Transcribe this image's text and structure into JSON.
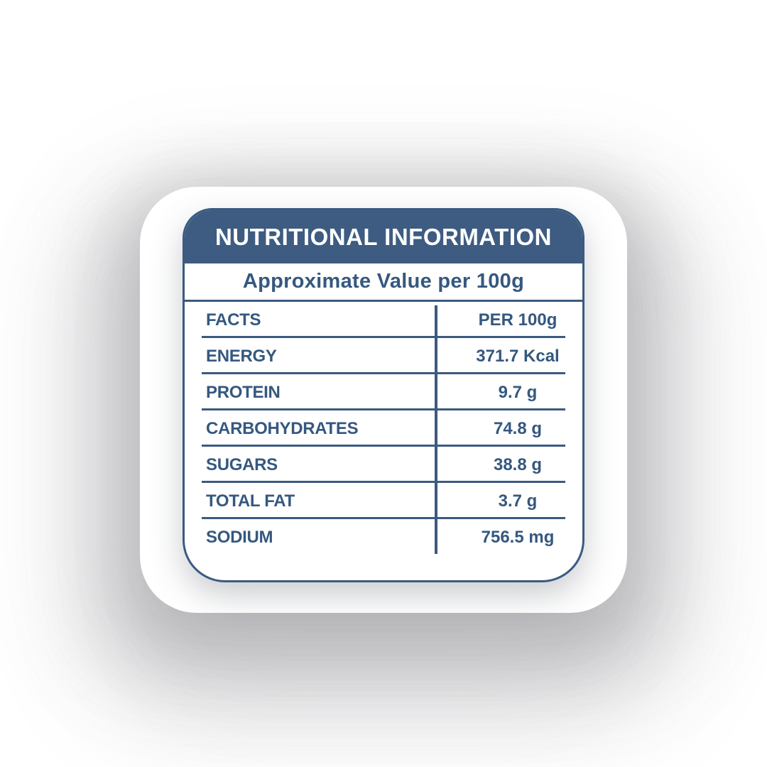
{
  "nutrition_label": {
    "title": "NUTRITIONAL INFORMATION",
    "subtitle": "Approximate Value per 100g",
    "table": {
      "rows": [
        {
          "label": "FACTS",
          "value": "PER 100g",
          "is_header": true
        },
        {
          "label": "ENERGY",
          "value": "371.7 Kcal"
        },
        {
          "label": "PROTEIN",
          "value": "9.7 g"
        },
        {
          "label": "CARBOHYDRATES",
          "value": "74.8 g"
        },
        {
          "label": "SUGARS",
          "value": "38.8 g"
        },
        {
          "label": "TOTAL FAT",
          "value": "3.7 g"
        },
        {
          "label": "SODIUM",
          "value": "756.5 mg"
        }
      ]
    },
    "colors": {
      "primary_blue": "#3E5C82",
      "line_blue": "#3B5A80",
      "text_blue": "#35587F",
      "header_text": "#FFFFFF",
      "card_background": "#FFFFFF"
    }
  }
}
